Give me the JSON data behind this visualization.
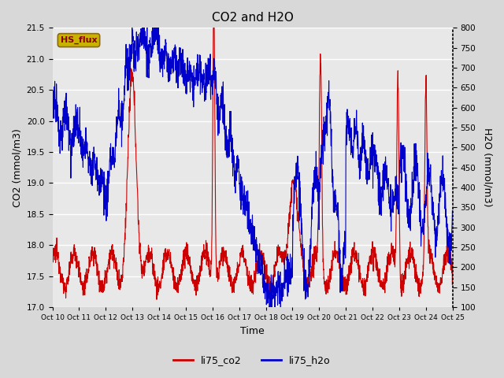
{
  "title": "CO2 and H2O",
  "xlabel": "Time",
  "ylabel_left": "CO2 (mmol/m3)",
  "ylabel_right": "H2O (mmol/m3)",
  "ylim_left": [
    17.0,
    21.5
  ],
  "ylim_right": [
    100,
    800
  ],
  "yticks_left": [
    17.0,
    17.5,
    18.0,
    18.5,
    19.0,
    19.5,
    20.0,
    20.5,
    21.0,
    21.5
  ],
  "yticks_right": [
    100,
    150,
    200,
    250,
    300,
    350,
    400,
    450,
    500,
    550,
    600,
    650,
    700,
    750,
    800
  ],
  "xtick_labels": [
    "Oct 10",
    "Oct 11",
    "Oct 12",
    "Oct 13",
    "Oct 14",
    "Oct 15",
    "Oct 16",
    "Oct 17",
    "Oct 18",
    "Oct 19",
    "Oct 20",
    "Oct 21",
    "Oct 22",
    "Oct 23",
    "Oct 24",
    "Oct 25"
  ],
  "co2_color": "#cc0000",
  "h2o_color": "#0000cc",
  "background_color": "#d8d8d8",
  "plot_bg_color": "#e8e8e8",
  "grid_color": "#ffffff",
  "legend_label_co2": "li75_co2",
  "legend_label_h2o": "li75_h2o",
  "tag_text": "HS_flux",
  "tag_bg": "#c8b400",
  "tag_border": "#8b6914",
  "tag_text_color": "#8b0000"
}
